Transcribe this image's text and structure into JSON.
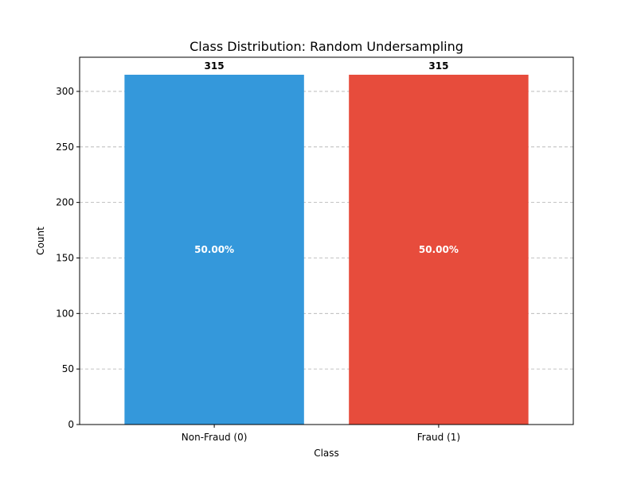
{
  "chart_data": {
    "type": "bar",
    "title": "Class Distribution: Random Undersampling",
    "xlabel": "Class",
    "ylabel": "Count",
    "categories": [
      "Non-Fraud (0)",
      "Fraud (1)"
    ],
    "values": [
      315,
      315
    ],
    "value_labels": [
      "315",
      "315"
    ],
    "percent_labels": [
      "50.00%",
      "50.00%"
    ],
    "bar_colors": [
      "#3498db",
      "#e74c3c"
    ],
    "ylim": [
      0,
      330.75
    ],
    "yticks": [
      0,
      50,
      100,
      150,
      200,
      250,
      300
    ],
    "grid": {
      "axis": "y",
      "style": "dashed"
    },
    "legend": "none"
  }
}
